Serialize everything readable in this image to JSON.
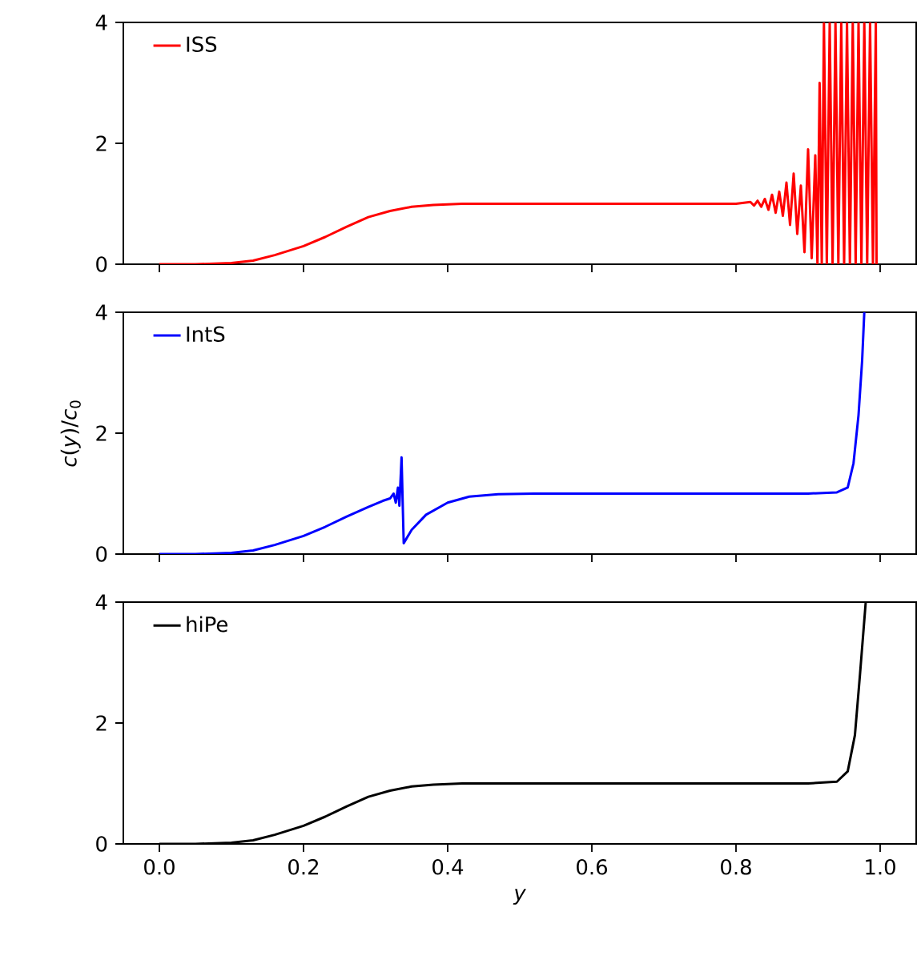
{
  "chart_data": [
    {
      "type": "line",
      "legend": "top left",
      "tick_labels": "y",
      "xlim": [
        -0.05,
        1.05
      ],
      "ylim": [
        0,
        4
      ],
      "yticks": [
        0,
        2,
        4
      ],
      "xticks": [
        0,
        0.2,
        0.4,
        0.6,
        0.8,
        1
      ],
      "series": [
        {
          "name": "ISS",
          "color": "#ff0000",
          "x": [
            0,
            0.05,
            0.1,
            0.13,
            0.16,
            0.2,
            0.23,
            0.26,
            0.29,
            0.32,
            0.35,
            0.38,
            0.42,
            0.46,
            0.5,
            0.6,
            0.8,
            0.82,
            0.825,
            0.83,
            0.835,
            0.84,
            0.845,
            0.85,
            0.855,
            0.86,
            0.865,
            0.87,
            0.875,
            0.88,
            0.885,
            0.89,
            0.895,
            0.9,
            0.905,
            0.91,
            0.913,
            0.916,
            0.919,
            0.922,
            0.926,
            0.93,
            0.934,
            0.938,
            0.942,
            0.946,
            0.95,
            0.954,
            0.958,
            0.962,
            0.966,
            0.97,
            0.974,
            0.978,
            0.982,
            0.986,
            0.99,
            0.994,
            0.995
          ],
          "values": [
            0,
            0,
            0.02,
            0.06,
            0.15,
            0.3,
            0.45,
            0.62,
            0.78,
            0.88,
            0.95,
            0.98,
            1,
            1,
            1,
            1,
            1,
            1.03,
            0.97,
            1.05,
            0.95,
            1.08,
            0.9,
            1.15,
            0.85,
            1.2,
            0.8,
            1.35,
            0.65,
            1.5,
            0.5,
            1.3,
            0.2,
            1.9,
            0.1,
            1.8,
            0,
            3,
            0,
            4,
            0,
            4,
            0,
            4,
            0,
            4,
            0,
            4,
            0,
            4,
            0,
            4,
            0,
            4,
            0,
            4,
            0,
            4,
            0
          ]
        }
      ]
    },
    {
      "type": "line",
      "legend": "top left",
      "tick_labels": "y",
      "xlim": [
        -0.05,
        1.05
      ],
      "ylim": [
        0,
        4
      ],
      "yticks": [
        0,
        2,
        4
      ],
      "ylabel": "*c*(*y*)/*c*$_{0}$",
      "xticks": [
        0,
        0.2,
        0.4,
        0.6,
        0.8,
        1
      ],
      "series": [
        {
          "name": "IntS",
          "color": "#0000ff",
          "x": [
            0,
            0.05,
            0.1,
            0.13,
            0.16,
            0.2,
            0.23,
            0.26,
            0.29,
            0.31,
            0.32,
            0.325,
            0.328,
            0.331,
            0.333,
            0.336,
            0.339,
            0.35,
            0.37,
            0.4,
            0.43,
            0.47,
            0.52,
            0.9,
            0.94,
            0.955,
            0.963,
            0.97,
            0.975,
            0.978
          ],
          "values": [
            0,
            0,
            0.02,
            0.06,
            0.15,
            0.3,
            0.45,
            0.62,
            0.78,
            0.88,
            0.92,
            1.0,
            0.85,
            1.1,
            0.8,
            1.6,
            0.18,
            0.4,
            0.65,
            0.85,
            0.95,
            0.99,
            1,
            1,
            1.02,
            1.1,
            1.5,
            2.3,
            3.2,
            4
          ]
        }
      ]
    },
    {
      "type": "line",
      "legend": "top left",
      "xlim": [
        -0.05,
        1.05
      ],
      "ylim": [
        0,
        4
      ],
      "yticks": [
        0,
        2,
        4
      ],
      "xlabel": "y",
      "xticks": [
        {
          "value": 0,
          "label": "0.0"
        },
        {
          "value": 0.2,
          "label": "0.2"
        },
        {
          "value": 0.4,
          "label": "0.4"
        },
        {
          "value": 0.6,
          "label": "0.6"
        },
        {
          "value": 0.8,
          "label": "0.8"
        },
        {
          "value": 1,
          "label": "1.0"
        }
      ],
      "series": [
        {
          "name": "hiPe",
          "color": "#000000",
          "x": [
            0,
            0.05,
            0.1,
            0.13,
            0.16,
            0.2,
            0.23,
            0.26,
            0.29,
            0.32,
            0.35,
            0.38,
            0.42,
            0.46,
            0.5,
            0.9,
            0.94,
            0.955,
            0.965,
            0.972,
            0.98
          ],
          "values": [
            0,
            0,
            0.02,
            0.06,
            0.15,
            0.3,
            0.45,
            0.62,
            0.78,
            0.88,
            0.95,
            0.98,
            1,
            1,
            1,
            1,
            1.03,
            1.2,
            1.8,
            2.8,
            4
          ]
        }
      ]
    }
  ]
}
